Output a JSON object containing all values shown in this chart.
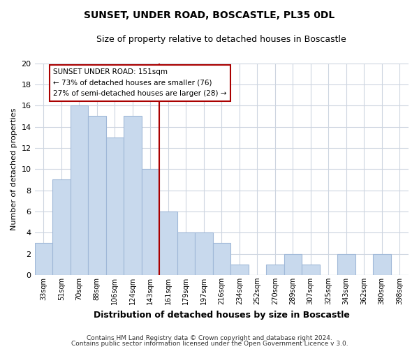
{
  "title": "SUNSET, UNDER ROAD, BOSCASTLE, PL35 0DL",
  "subtitle": "Size of property relative to detached houses in Boscastle",
  "xlabel": "Distribution of detached houses by size in Boscastle",
  "ylabel": "Number of detached properties",
  "bar_color": "#c8d9ed",
  "bar_edge_color": "#a0b8d8",
  "categories": [
    "33sqm",
    "51sqm",
    "70sqm",
    "88sqm",
    "106sqm",
    "124sqm",
    "143sqm",
    "161sqm",
    "179sqm",
    "197sqm",
    "216sqm",
    "234sqm",
    "252sqm",
    "270sqm",
    "289sqm",
    "307sqm",
    "325sqm",
    "343sqm",
    "362sqm",
    "380sqm",
    "398sqm"
  ],
  "values": [
    3,
    9,
    16,
    15,
    13,
    15,
    10,
    6,
    4,
    4,
    3,
    1,
    0,
    1,
    2,
    1,
    0,
    2,
    0,
    2,
    0
  ],
  "ylim": [
    0,
    20
  ],
  "yticks": [
    0,
    2,
    4,
    6,
    8,
    10,
    12,
    14,
    16,
    18,
    20
  ],
  "property_line_label": "SUNSET UNDER ROAD: 151sqm",
  "annotation_line1": "← 73% of detached houses are smaller (76)",
  "annotation_line2": "27% of semi-detached houses are larger (28) →",
  "footnote1": "Contains HM Land Registry data © Crown copyright and database right 2024.",
  "footnote2": "Contains public sector information licensed under the Open Government Licence v 3.0.",
  "grid_color": "#cdd5e0",
  "line_color": "#aa0000",
  "annotation_box_color": "#ffffff",
  "annotation_box_edge": "#aa0000",
  "property_line_index": 6,
  "title_fontsize": 10,
  "subtitle_fontsize": 9,
  "ylabel_fontsize": 8,
  "xlabel_fontsize": 9,
  "tick_fontsize": 7,
  "footnote_fontsize": 6.5
}
